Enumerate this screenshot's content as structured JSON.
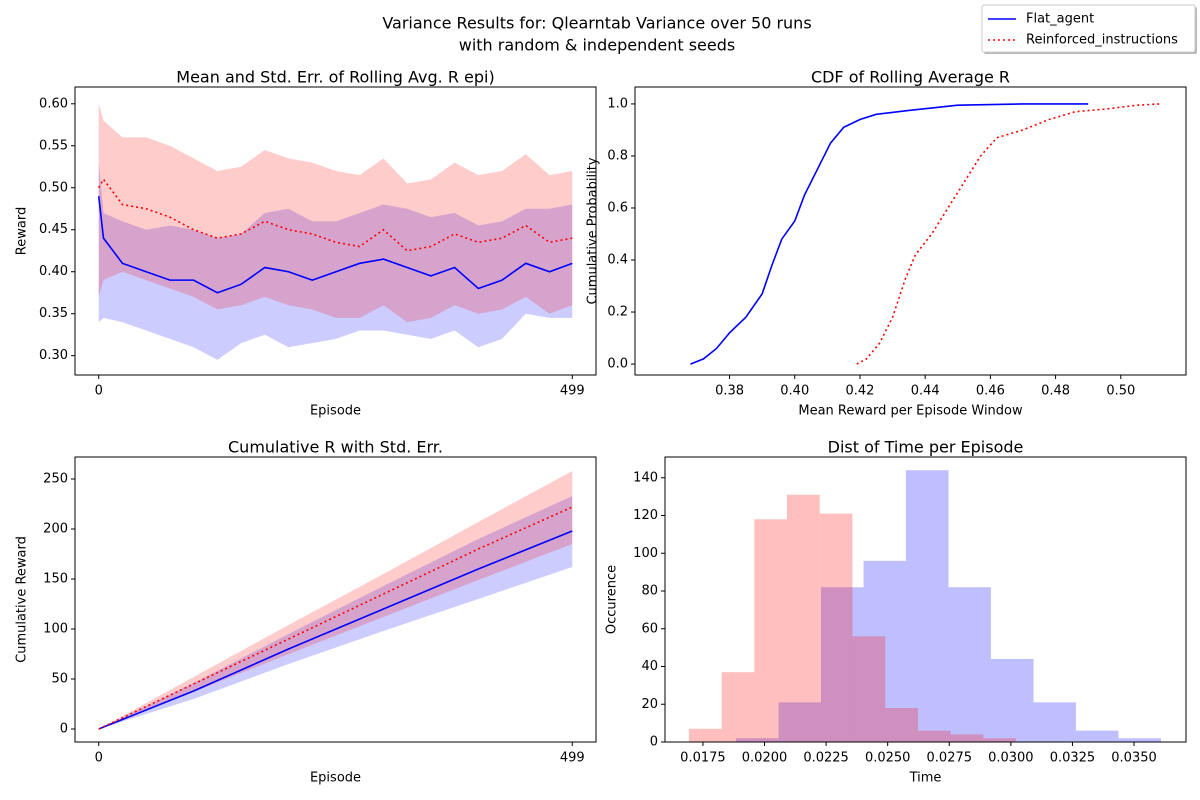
{
  "title": [
    "Variance Results for: Qlearntab Variance over 50 runs",
    "with random & independent seeds"
  ],
  "legend": {
    "loc": "upper right",
    "entries": [
      {
        "label": "Flat_agent",
        "color": "#0000ff",
        "linestyle": "solid"
      },
      {
        "label": "Reinforced_instructions",
        "color": "#ff0000",
        "linestyle": "dotted"
      }
    ]
  },
  "chart_data": [
    {
      "type": "line",
      "title": "Mean and Std. Err. of Rolling Avg. R epi)",
      "xlabel": "Episode",
      "ylabel": "Reward",
      "x": [
        0,
        5,
        25,
        50,
        75,
        100,
        125,
        150,
        175,
        200,
        225,
        250,
        275,
        300,
        325,
        350,
        375,
        400,
        425,
        450,
        475,
        499
      ],
      "xlim": [
        -25,
        524
      ],
      "xticks": [
        0,
        499
      ],
      "ylim": [
        0.277,
        0.62
      ],
      "yticks": [
        {
          "value": 0.3,
          "label": "0.30"
        },
        0.35,
        {
          "value": 0.4,
          "label": "0.40"
        },
        0.45,
        {
          "value": 0.5,
          "label": "0.50"
        },
        0.55,
        {
          "value": 0.6,
          "label": "0.60"
        }
      ],
      "band_alpha": 0.2,
      "series": [
        {
          "color": "#0000ff",
          "linestyle": "solid",
          "values": [
            0.49,
            0.44,
            0.41,
            0.4,
            0.39,
            0.39,
            0.375,
            0.385,
            0.405,
            0.4,
            0.39,
            0.4,
            0.41,
            0.415,
            0.405,
            0.395,
            0.405,
            0.38,
            0.39,
            0.41,
            0.4,
            0.41
          ],
          "lower": [
            0.34,
            0.345,
            0.34,
            0.33,
            0.32,
            0.31,
            0.295,
            0.315,
            0.325,
            0.31,
            0.315,
            0.32,
            0.33,
            0.33,
            0.325,
            0.32,
            0.33,
            0.31,
            0.32,
            0.35,
            0.345,
            0.345
          ],
          "upper": [
            0.53,
            0.47,
            0.46,
            0.45,
            0.455,
            0.45,
            0.44,
            0.445,
            0.47,
            0.475,
            0.46,
            0.46,
            0.47,
            0.48,
            0.475,
            0.465,
            0.47,
            0.455,
            0.46,
            0.475,
            0.475,
            0.48
          ]
        },
        {
          "color": "#ff0000",
          "linestyle": "dotted",
          "values": [
            0.5,
            0.51,
            0.48,
            0.475,
            0.465,
            0.45,
            0.44,
            0.445,
            0.46,
            0.45,
            0.445,
            0.435,
            0.43,
            0.45,
            0.425,
            0.43,
            0.445,
            0.435,
            0.44,
            0.455,
            0.435,
            0.44
          ],
          "lower": [
            0.37,
            0.39,
            0.4,
            0.39,
            0.38,
            0.37,
            0.355,
            0.36,
            0.37,
            0.36,
            0.355,
            0.345,
            0.345,
            0.36,
            0.34,
            0.345,
            0.36,
            0.35,
            0.355,
            0.37,
            0.35,
            0.36
          ],
          "upper": [
            0.6,
            0.58,
            0.56,
            0.56,
            0.55,
            0.535,
            0.52,
            0.525,
            0.545,
            0.535,
            0.53,
            0.52,
            0.515,
            0.535,
            0.505,
            0.51,
            0.53,
            0.515,
            0.52,
            0.54,
            0.515,
            0.52
          ]
        }
      ]
    },
    {
      "type": "line",
      "title": "CDF of Rolling Average R",
      "xlabel": "Mean Reward per Episode Window",
      "ylabel": "Cumulative Probability",
      "xlim": [
        0.351,
        0.52
      ],
      "xticks": [
        0.38,
        {
          "value": 0.4,
          "label": "0.40"
        },
        0.42,
        0.44,
        0.46,
        0.48,
        {
          "value": 0.5,
          "label": "0.50"
        }
      ],
      "ylim": [
        -0.042,
        1.065
      ],
      "yticks": [
        {
          "value": 0,
          "label": "0.0"
        },
        0.2,
        0.4,
        0.6,
        0.8,
        {
          "value": 1,
          "label": "1.0"
        }
      ],
      "series": [
        {
          "color": "#0000ff",
          "linestyle": "solid",
          "x": [
            0.368,
            0.372,
            0.376,
            0.38,
            0.385,
            0.39,
            0.393,
            0.396,
            0.4,
            0.403,
            0.407,
            0.411,
            0.415,
            0.42,
            0.425,
            0.435,
            0.45,
            0.47,
            0.49
          ],
          "values": [
            0,
            0.02,
            0.06,
            0.12,
            0.18,
            0.27,
            0.38,
            0.48,
            0.55,
            0.65,
            0.75,
            0.85,
            0.91,
            0.94,
            0.96,
            0.975,
            0.995,
            1,
            1
          ]
        },
        {
          "color": "#ff0000",
          "linestyle": "dotted",
          "x": [
            0.419,
            0.422,
            0.426,
            0.43,
            0.434,
            0.437,
            0.442,
            0.447,
            0.452,
            0.457,
            0.462,
            0.47,
            0.478,
            0.486,
            0.495,
            0.505,
            0.512
          ],
          "values": [
            0,
            0.02,
            0.08,
            0.18,
            0.33,
            0.42,
            0.5,
            0.6,
            0.7,
            0.8,
            0.87,
            0.9,
            0.94,
            0.97,
            0.98,
            0.995,
            1
          ]
        }
      ]
    },
    {
      "type": "line",
      "title": "Cumulative R with Std. Err.",
      "xlabel": "Episode",
      "ylabel": "Cumulative Reward",
      "x": [
        0,
        100,
        200,
        300,
        400,
        499
      ],
      "xlim": [
        -25,
        524
      ],
      "xticks": [
        0,
        499
      ],
      "ylim": [
        -13,
        272
      ],
      "yticks": [
        0,
        50,
        100,
        150,
        200,
        250
      ],
      "band_alpha": 0.2,
      "series": [
        {
          "color": "#0000ff",
          "linestyle": "solid",
          "values": [
            0,
            38,
            80,
            120,
            160,
            198
          ],
          "lower": [
            0,
            30,
            65,
            98,
            130,
            162
          ],
          "upper": [
            0,
            46,
            95,
            143,
            190,
            233
          ]
        },
        {
          "color": "#ff0000",
          "linestyle": "dotted",
          "values": [
            0,
            45,
            90,
            135,
            180,
            222
          ],
          "lower": [
            0,
            37,
            75,
            112,
            149,
            185
          ],
          "upper": [
            0,
            52,
            104,
            155,
            207,
            258
          ]
        }
      ]
    },
    {
      "type": "histogram",
      "title": "Dist of Time per Episode",
      "xlabel": "Time",
      "ylabel": "Occurence",
      "xlim": [
        0.01596,
        0.03711
      ],
      "xticks": [
        0.0175,
        {
          "value": 0.02,
          "label": "0.0200"
        },
        0.0225,
        {
          "value": 0.025,
          "label": "0.0250"
        },
        0.0275,
        {
          "value": 0.03,
          "label": "0.0300"
        },
        0.0325,
        {
          "value": 0.035,
          "label": "0.0350"
        }
      ],
      "ylim": [
        0,
        151
      ],
      "yticks": [
        0,
        20,
        40,
        60,
        80,
        100,
        120,
        140
      ],
      "alpha": 0.25,
      "series": [
        {
          "color": "#0000ff",
          "bins": [
            0.01884,
            0.02057,
            0.02229,
            0.02402,
            0.02574,
            0.02747,
            0.02919,
            0.03092,
            0.03264,
            0.03437,
            0.03609
          ],
          "values": [
            2,
            21,
            82,
            96,
            144,
            82,
            44,
            21,
            6,
            2
          ]
        },
        {
          "color": "#ff0000",
          "bins": [
            0.01693,
            0.01826,
            0.01959,
            0.02091,
            0.02224,
            0.02357,
            0.0249,
            0.02623,
            0.02755,
            0.02888,
            0.03021
          ],
          "values": [
            7,
            37,
            118,
            131,
            121,
            56,
            18,
            6,
            4,
            2
          ]
        }
      ]
    }
  ]
}
